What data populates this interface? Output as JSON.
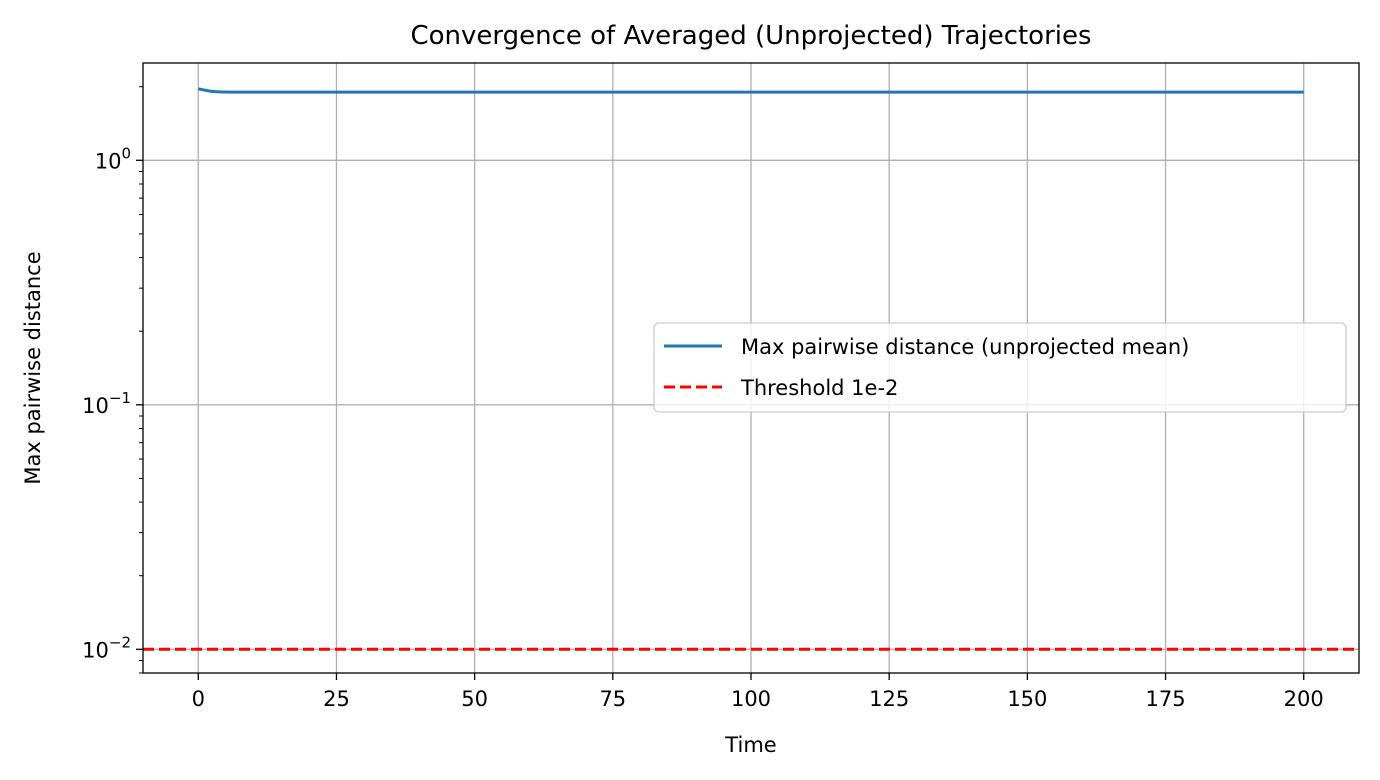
{
  "chart_data": {
    "type": "line",
    "title": "Convergence of Averaged (Unprojected) Trajectories",
    "xlabel": "Time",
    "ylabel": "Max pairwise distance",
    "xlim": [
      -10,
      210
    ],
    "ylim": [
      0.008,
      2.5
    ],
    "yscale": "log",
    "grid": true,
    "legend_position": "center-right",
    "x_ticks": [
      {
        "value": 0,
        "label": "0"
      },
      {
        "value": 25,
        "label": "25"
      },
      {
        "value": 50,
        "label": "50"
      },
      {
        "value": 75,
        "label": "75"
      },
      {
        "value": 100,
        "label": "100"
      },
      {
        "value": 125,
        "label": "125"
      },
      {
        "value": 150,
        "label": "150"
      },
      {
        "value": 175,
        "label": "175"
      },
      {
        "value": 200,
        "label": "200"
      }
    ],
    "y_ticks": [
      {
        "value": 0.01,
        "base": "10",
        "exp": "−2"
      },
      {
        "value": 0.1,
        "base": "10",
        "exp": "−1"
      },
      {
        "value": 1,
        "base": "10",
        "exp": "0"
      }
    ],
    "series": [
      {
        "name": "Max pairwise distance (unprojected mean)",
        "color": "#1f77b4",
        "style": "solid",
        "x": [
          0,
          1,
          2,
          3,
          4,
          6,
          10,
          20,
          50,
          100,
          150,
          200
        ],
        "y": [
          1.96,
          1.94,
          1.92,
          1.91,
          1.905,
          1.9,
          1.9,
          1.9,
          1.9,
          1.9,
          1.9,
          1.9
        ]
      },
      {
        "name": "Threshold 1e-2",
        "color": "#ff0000",
        "style": "dashed",
        "type": "hline",
        "y": 0.01
      }
    ]
  }
}
